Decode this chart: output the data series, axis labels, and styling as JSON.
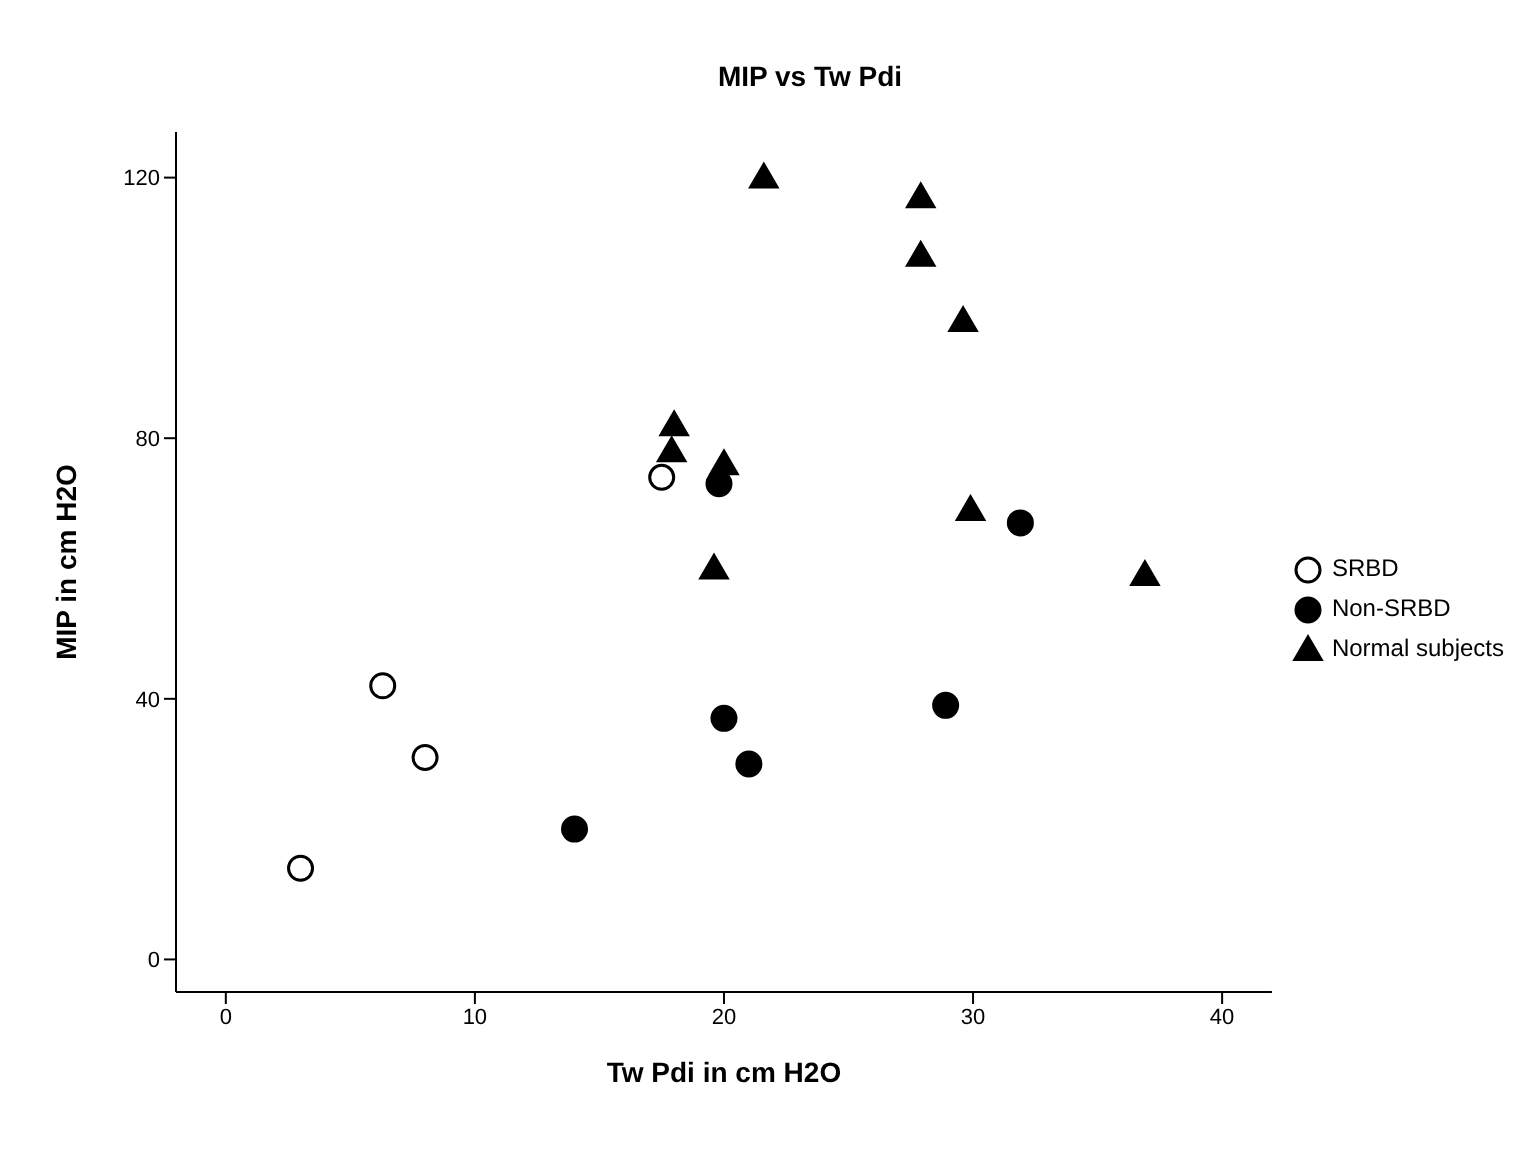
{
  "chart_data": {
    "type": "scatter",
    "title": "MIP vs Tw Pdi",
    "xlabel": "Tw Pdi in cm H2O",
    "ylabel": "MIP in cm H2O",
    "xlim": [
      -2,
      42
    ],
    "xticks": [
      0,
      10,
      20,
      30,
      40
    ],
    "ylim": [
      -5,
      127
    ],
    "yticks": [
      0,
      40,
      80,
      120
    ],
    "legend": "right",
    "series": [
      {
        "name": "SRBD",
        "color": "#ffffff",
        "marker": "circle",
        "x": [
          3.0,
          6.3,
          8.0,
          17.5
        ],
        "values": [
          14,
          42,
          31,
          74
        ]
      },
      {
        "name": "Non-SRBD",
        "color": "#000000",
        "marker": "circle",
        "x": [
          14,
          19.8,
          20,
          21,
          28.9,
          31.9
        ],
        "values": [
          20,
          73,
          37,
          30,
          39,
          67
        ]
      },
      {
        "name": "Normal subjects",
        "color": "#000000",
        "marker": "triangle",
        "x": [
          21.6,
          27.9,
          27.9,
          29.6,
          18,
          17.9,
          20,
          19.6,
          29.9,
          36.9
        ],
        "values": [
          120,
          117,
          108,
          98,
          82,
          78,
          76,
          60,
          69,
          59
        ]
      }
    ]
  }
}
